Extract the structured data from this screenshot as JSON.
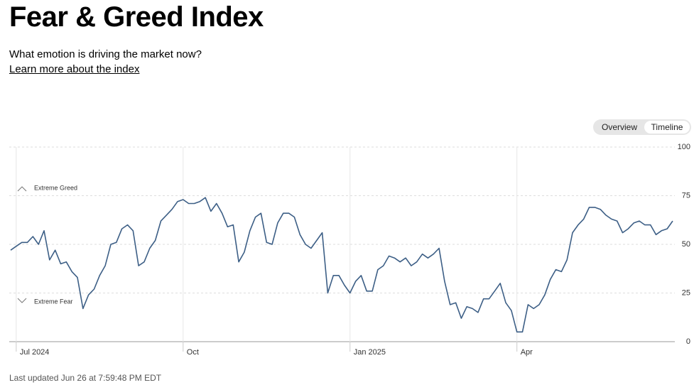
{
  "header": {
    "title": "Fear & Greed Index",
    "subtitle": "What emotion is driving the market now?",
    "link": "Learn more about the index"
  },
  "tabs": [
    "Overview",
    "Timeline"
  ],
  "footer": "Last updated Jun 26 at 7:59:48 PM EDT",
  "chart_data": {
    "type": "line",
    "annotations": [
      "Extreme Greed",
      "Extreme Fear"
    ],
    "categories": [
      null,
      "Jul 2024",
      null,
      null,
      null,
      null,
      null,
      null,
      null,
      null,
      null,
      null,
      null,
      null,
      null,
      null,
      null,
      null,
      null,
      null,
      null,
      null,
      null,
      null,
      null,
      null,
      null,
      null,
      null,
      null,
      null,
      "Oct",
      null,
      null,
      null,
      null,
      null,
      null,
      null,
      null,
      null,
      null,
      null,
      null,
      null,
      null,
      null,
      null,
      null,
      null,
      null,
      null,
      null,
      null,
      null,
      null,
      null,
      null,
      null,
      null,
      null,
      "Jan 2025",
      null,
      null,
      null,
      null,
      null,
      null,
      null,
      null,
      null,
      null,
      null,
      null,
      null,
      null,
      null,
      null,
      null,
      null,
      null,
      null,
      null,
      null,
      null,
      null,
      null,
      null,
      null,
      null,
      null,
      "Apr",
      null,
      null,
      null,
      null,
      null,
      null,
      null,
      null,
      null,
      null,
      null,
      null,
      null,
      null,
      null,
      null,
      null,
      null,
      null,
      null,
      null,
      null,
      null,
      null,
      null,
      null,
      null,
      null
    ],
    "values": [
      47,
      49,
      51,
      51,
      54,
      50,
      57,
      42,
      47,
      40,
      41,
      36,
      33,
      17,
      24,
      27,
      34,
      39,
      50,
      51,
      58,
      60,
      57,
      39,
      41,
      48,
      52,
      62,
      65,
      68,
      72,
      73,
      71,
      71,
      72,
      74,
      67,
      71,
      66,
      59,
      60,
      41,
      46,
      57,
      64,
      66,
      51,
      50,
      61,
      66,
      66,
      64,
      55,
      50,
      48,
      52,
      56,
      25,
      34,
      34,
      29,
      25,
      31,
      34,
      26,
      26,
      37,
      39,
      44,
      43,
      41,
      43,
      39,
      41,
      45,
      43,
      45,
      48,
      31,
      19,
      20,
      12,
      18,
      17,
      15,
      22,
      22,
      26,
      30,
      20,
      16,
      5,
      5,
      19,
      17,
      19,
      24,
      32,
      37,
      36,
      42,
      56,
      60,
      63,
      69,
      69,
      68,
      65,
      63,
      62,
      56,
      58,
      61,
      62,
      60,
      60,
      55,
      57,
      58,
      62
    ],
    "color": "#3d5f86",
    "ylim": [
      0,
      100
    ],
    "yticks": [
      0,
      25,
      50,
      75,
      100
    ],
    "grid": true
  }
}
